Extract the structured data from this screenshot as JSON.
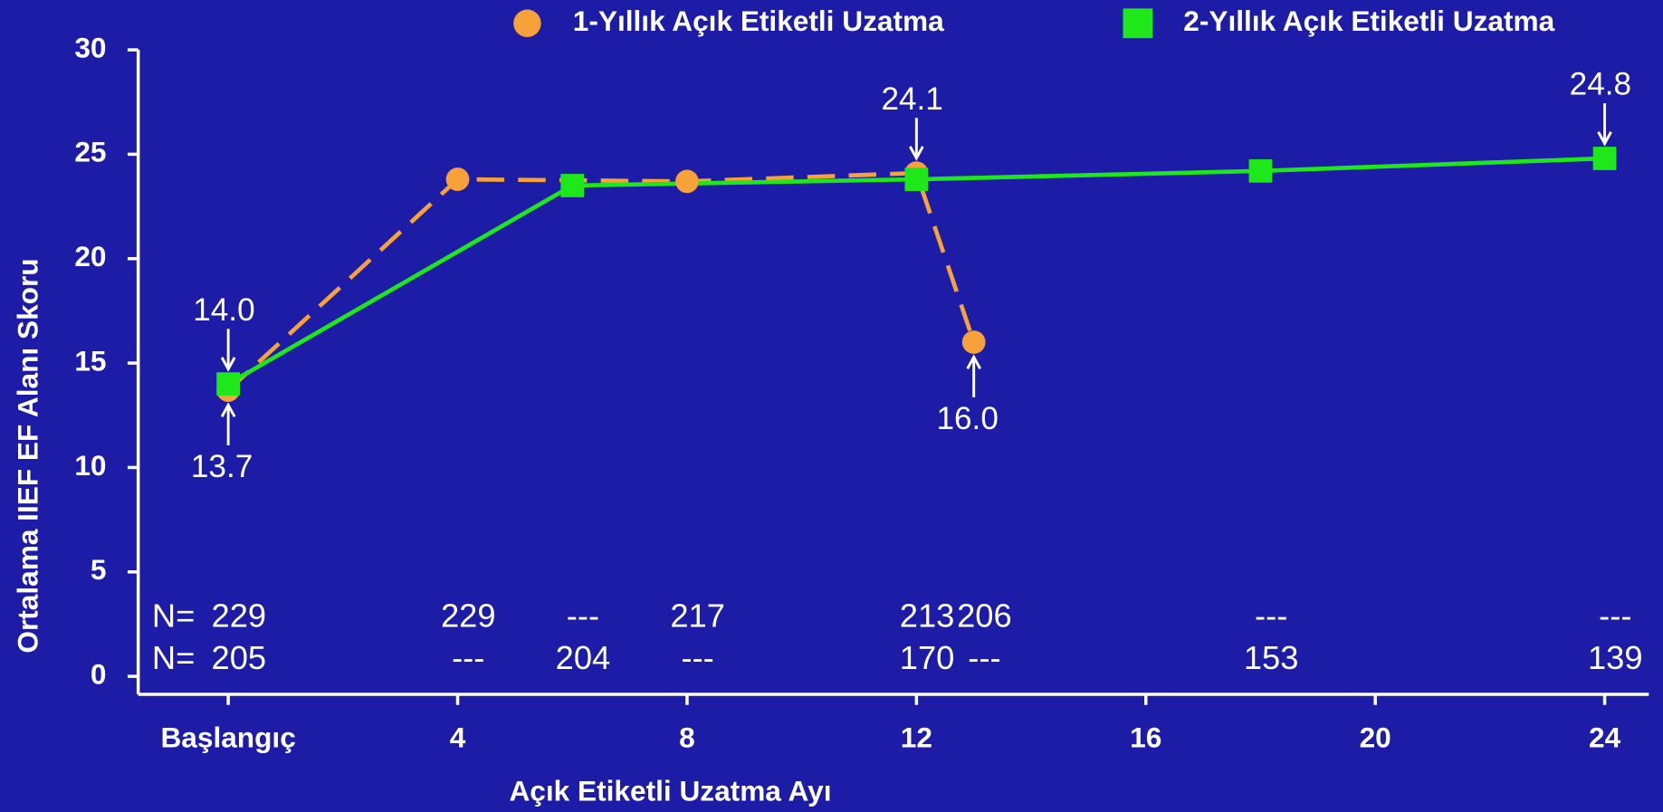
{
  "chart_data": {
    "type": "line",
    "x_label": "Açık Etiketli Uzatma Ayı",
    "y_label": "Ortalama IIEF EF Alanı Skoru",
    "xlim": [
      -1.57,
      24.77
    ],
    "ylim": [
      0,
      30
    ],
    "xticks": [
      {
        "value": 0,
        "label": "Başlangıç"
      },
      4,
      8,
      12,
      16,
      20,
      24
    ],
    "yticks": [
      0,
      5,
      10,
      15,
      20,
      25,
      30
    ],
    "legend": "top",
    "series": [
      {
        "name": "1-Yıllık Açık Etiketli Uzatma",
        "color": "#f7a13a",
        "dashed": true,
        "marker": "circle",
        "x": [
          0,
          4,
          8,
          12,
          13
        ],
        "values": [
          13.7,
          23.8,
          23.7,
          24.1,
          16.0
        ],
        "value_labels": [
          "13.7",
          null,
          null,
          "24.1",
          "16.0"
        ]
      },
      {
        "name": "2-Yıllık Açık Etiketli Uzatma",
        "color": "#1ee81a",
        "dashed": false,
        "marker": "square",
        "x": [
          0,
          6,
          12,
          18,
          24
        ],
        "values": [
          14.0,
          23.5,
          23.8,
          24.2,
          24.8
        ],
        "value_labels": [
          "14.0",
          null,
          null,
          null,
          "24.8"
        ]
      }
    ],
    "n_x": [
      0,
      4,
      6,
      8,
      12,
      13,
      18,
      24
    ],
    "n_rows": [
      {
        "label": "N=",
        "values": [
          "229",
          "229",
          "---",
          "217",
          "213",
          "206",
          "---",
          "---"
        ]
      },
      {
        "label": "N=",
        "values": [
          "205",
          "---",
          "204",
          "---",
          "170",
          "---",
          "153",
          "139"
        ]
      }
    ]
  }
}
